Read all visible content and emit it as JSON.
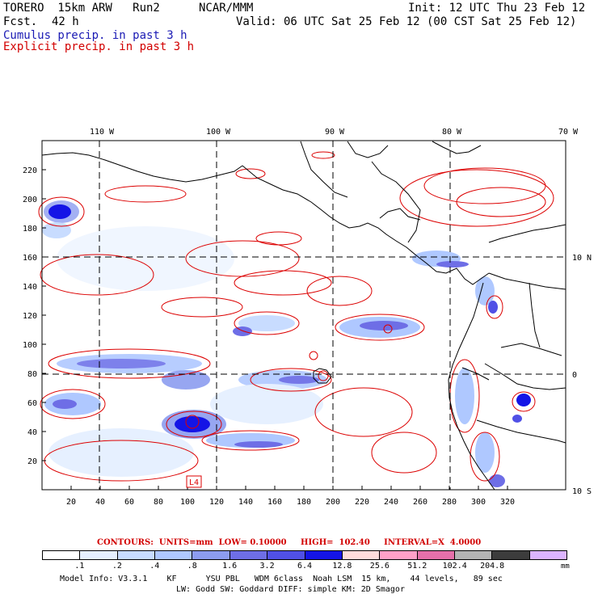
{
  "header": {
    "model": "TORERO  15km ARW   Run2",
    "org": "NCAR/MMM",
    "init": "Init: 12 UTC Thu 23 Feb 12",
    "fcst_label": "Fcst.",
    "fcst_value": "42 h",
    "valid": "Valid: 06 UTC Sat 25 Feb 12 (00 CST Sat 25 Feb 12)",
    "legend_cumulus": "Cumulus precip. in past 3 h",
    "legend_explicit": "Explicit precip. in past 3 h"
  },
  "map": {
    "lon_labels": [
      "110 W",
      "100 W",
      "90 W",
      "80 W",
      "70 W"
    ],
    "lat_labels": [
      "10 N",
      "0",
      "10 S"
    ],
    "y_ticks": [
      "220",
      "200",
      "180",
      "160",
      "140",
      "120",
      "100",
      "80",
      "60",
      "40",
      "20"
    ],
    "x_ticks": [
      "20",
      "40",
      "60",
      "80",
      "100",
      "120",
      "140",
      "160",
      "180",
      "200",
      "220",
      "240",
      "260",
      "280",
      "300",
      "320"
    ],
    "low_marker": "L4"
  },
  "contours": {
    "text": "CONTOURS:  UNITS=mm  LOW= 0.10000     HIGH=  102.40     INTERVAL=X  4.0000"
  },
  "colorbar": {
    "colors": [
      "#ffffff",
      "#e6f0ff",
      "#c8dcff",
      "#afc8ff",
      "#8c9cf0",
      "#6e6ee6",
      "#5050e6",
      "#1414e6",
      "#ffdcdc",
      "#ffa0c8",
      "#e670aa",
      "#b4b4b4",
      "#3c3c3c",
      "#dcb4ff"
    ],
    "labels": [
      ".1",
      ".2",
      ".4",
      ".8",
      "1.6",
      "3.2",
      "6.4",
      "12.8",
      "25.6",
      "51.2",
      "102.4",
      "204.8"
    ],
    "unit": "mm"
  },
  "footer": {
    "line1": "Model Info: V3.3.1    KF      YSU PBL   WDM 6class  Noah LSM  15 km,    44 levels,   89 sec",
    "line2": "LW: Godd SW: Goddard DIFF: simple KM: 2D Smagor"
  },
  "colors": {
    "contour_red": "#dc0000",
    "cumulus_blue": "#1a1ab4"
  }
}
